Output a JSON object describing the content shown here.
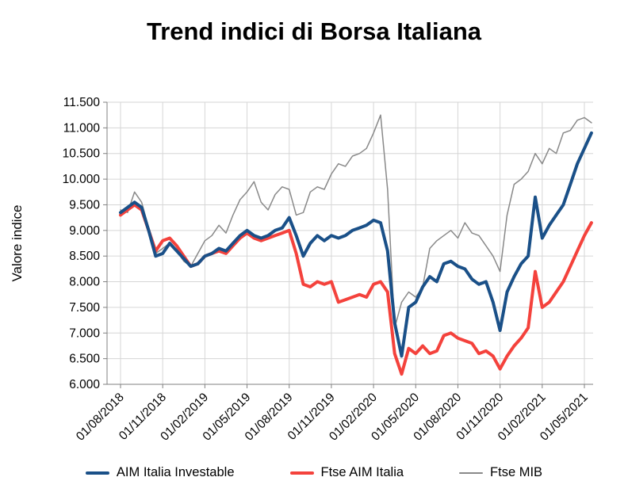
{
  "page": {
    "background": "#ffffff"
  },
  "chart_data": {
    "type": "line",
    "title": "Trend indici di Borsa Italiana",
    "ylabel": "Valore indice",
    "xlabel": "",
    "ylim": [
      6000,
      11500
    ],
    "grid": true,
    "legend_position": "bottom",
    "axis_color": "#808080",
    "grid_color": "#d6d6d6",
    "y_tick_values": [
      6000,
      6500,
      7000,
      7500,
      8000,
      8500,
      9000,
      9500,
      10000,
      10500,
      11000,
      11500
    ],
    "y_tick_labels": [
      "6.000",
      "6.500",
      "7.000",
      "7.500",
      "8.000",
      "8.500",
      "9.000",
      "9.500",
      "10.000",
      "10.500",
      "11.000",
      "11.500"
    ],
    "x_tick_labels": [
      "01/08/2018",
      "01/11/2018",
      "01/02/2019",
      "01/05/2019",
      "01/08/2019",
      "01/11/2019",
      "01/02/2020",
      "01/05/2020",
      "01/08/2020",
      "01/11/2020",
      "01/02/2021",
      "01/05/2021"
    ],
    "x_tick_indices": [
      0,
      6,
      12,
      18,
      24,
      30,
      36,
      42,
      48,
      54,
      60,
      66
    ],
    "dates": [
      "01/08/2018",
      "15/08/2018",
      "01/09/2018",
      "15/09/2018",
      "01/10/2018",
      "15/10/2018",
      "01/11/2018",
      "15/11/2018",
      "01/12/2018",
      "15/12/2018",
      "01/01/2019",
      "15/01/2019",
      "01/02/2019",
      "15/02/2019",
      "01/03/2019",
      "15/03/2019",
      "01/04/2019",
      "15/04/2019",
      "01/05/2019",
      "15/05/2019",
      "01/06/2019",
      "15/06/2019",
      "01/07/2019",
      "15/07/2019",
      "01/08/2019",
      "15/08/2019",
      "01/09/2019",
      "15/09/2019",
      "01/10/2019",
      "15/10/2019",
      "01/11/2019",
      "15/11/2019",
      "01/12/2019",
      "15/12/2019",
      "01/01/2020",
      "15/01/2020",
      "01/02/2020",
      "15/02/2020",
      "01/03/2020",
      "15/03/2020",
      "01/04/2020",
      "15/04/2020",
      "01/05/2020",
      "15/05/2020",
      "01/06/2020",
      "15/06/2020",
      "01/07/2020",
      "15/07/2020",
      "01/08/2020",
      "15/08/2020",
      "01/09/2020",
      "15/09/2020",
      "01/10/2020",
      "15/10/2020",
      "01/11/2020",
      "15/11/2020",
      "01/12/2020",
      "15/12/2020",
      "01/01/2021",
      "15/01/2021",
      "01/02/2021",
      "15/02/2021",
      "01/03/2021",
      "15/03/2021",
      "01/04/2021",
      "15/04/2021",
      "01/05/2021",
      "15/05/2021"
    ],
    "series": [
      {
        "name": "AIM Italia Investable",
        "color": "#1a5088",
        "line_width": 4,
        "values": [
          9350,
          9450,
          9550,
          9450,
          9000,
          8500,
          8550,
          8750,
          8600,
          8450,
          8300,
          8350,
          8500,
          8550,
          8650,
          8600,
          8750,
          8900,
          9000,
          8900,
          8850,
          8900,
          9000,
          9050,
          9250,
          8900,
          8500,
          8750,
          8900,
          8800,
          8900,
          8850,
          8900,
          9000,
          9050,
          9100,
          9200,
          9150,
          8600,
          7200,
          6550,
          7500,
          7600,
          7900,
          8100,
          8000,
          8350,
          8400,
          8300,
          8250,
          8050,
          7950,
          8000,
          7600,
          7050,
          7800,
          8100,
          8350,
          8500,
          9650,
          8850,
          9100,
          9300,
          9500,
          9900,
          10300,
          10600,
          10900
        ]
      },
      {
        "name": "Ftse AIM Italia",
        "color": "#f4423c",
        "line_width": 4,
        "values": [
          9300,
          9400,
          9500,
          9400,
          9000,
          8600,
          8800,
          8850,
          8700,
          8500,
          8300,
          8350,
          8500,
          8550,
          8600,
          8550,
          8700,
          8850,
          8950,
          8850,
          8800,
          8850,
          8900,
          8950,
          9000,
          8550,
          7950,
          7900,
          8000,
          7950,
          8000,
          7600,
          7650,
          7700,
          7750,
          7700,
          7950,
          8000,
          7800,
          6600,
          6200,
          6700,
          6600,
          6750,
          6600,
          6650,
          6950,
          7000,
          6900,
          6850,
          6800,
          6600,
          6650,
          6550,
          6300,
          6550,
          6750,
          6900,
          7100,
          8200,
          7500,
          7600,
          7800,
          8000,
          8300,
          8600,
          8900,
          9150
        ]
      },
      {
        "name": "Ftse MIB",
        "color": "#898989",
        "line_width": 1.5,
        "values": [
          9400,
          9350,
          9750,
          9550,
          9050,
          8550,
          8650,
          8750,
          8600,
          8400,
          8300,
          8550,
          8800,
          8900,
          9100,
          8950,
          9300,
          9600,
          9750,
          9950,
          9550,
          9400,
          9700,
          9850,
          9800,
          9300,
          9350,
          9750,
          9850,
          9800,
          10100,
          10300,
          10250,
          10450,
          10500,
          10600,
          10900,
          11250,
          9800,
          7100,
          7600,
          7800,
          7700,
          7900,
          8650,
          8800,
          8900,
          9000,
          8850,
          9150,
          8950,
          8900,
          8700,
          8500,
          8200,
          9300,
          9900,
          10000,
          10150,
          10500,
          10300,
          10600,
          10500,
          10900,
          10950,
          11150,
          11200,
          11100
        ]
      }
    ]
  }
}
